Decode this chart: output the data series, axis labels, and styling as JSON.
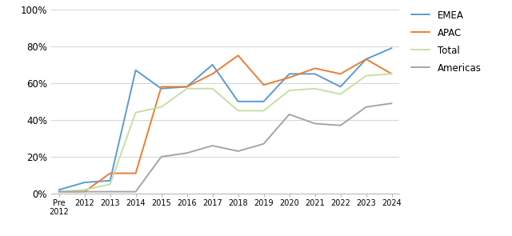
{
  "x_labels": [
    "Pre\n2012",
    "2012",
    "2013",
    "2014",
    "2015",
    "2016",
    "2017",
    "2018",
    "2019",
    "2020",
    "2021",
    "2022",
    "2023",
    "2024"
  ],
  "x_values": [
    0,
    1,
    2,
    3,
    4,
    5,
    6,
    7,
    8,
    9,
    10,
    11,
    12,
    13
  ],
  "EMEA": [
    0.02,
    0.06,
    0.07,
    0.67,
    0.57,
    0.58,
    0.7,
    0.5,
    0.5,
    0.65,
    0.65,
    0.58,
    0.73,
    0.79
  ],
  "APAC": [
    0.01,
    0.01,
    0.11,
    0.11,
    0.58,
    0.58,
    0.65,
    0.75,
    0.59,
    0.63,
    0.68,
    0.65,
    0.73,
    0.65
  ],
  "Total": [
    0.01,
    0.02,
    0.05,
    0.44,
    0.47,
    0.57,
    0.57,
    0.45,
    0.45,
    0.56,
    0.57,
    0.54,
    0.64,
    0.65
  ],
  "Americas": [
    0.01,
    0.01,
    0.01,
    0.01,
    0.2,
    0.22,
    0.26,
    0.23,
    0.27,
    0.43,
    0.38,
    0.37,
    0.47,
    0.49
  ],
  "colors": {
    "EMEA": "#5B9BD5",
    "APAC": "#ED7D31",
    "Total": "#C5E0A5",
    "Americas": "#A5A5A5"
  },
  "ylim": [
    0,
    1.0
  ],
  "yticks": [
    0,
    0.2,
    0.4,
    0.6,
    0.8,
    1.0
  ],
  "ytick_labels": [
    "0%",
    "20%",
    "40%",
    "60%",
    "80%",
    "100%"
  ],
  "legend_order": [
    "EMEA",
    "APAC",
    "Total",
    "Americas"
  ]
}
